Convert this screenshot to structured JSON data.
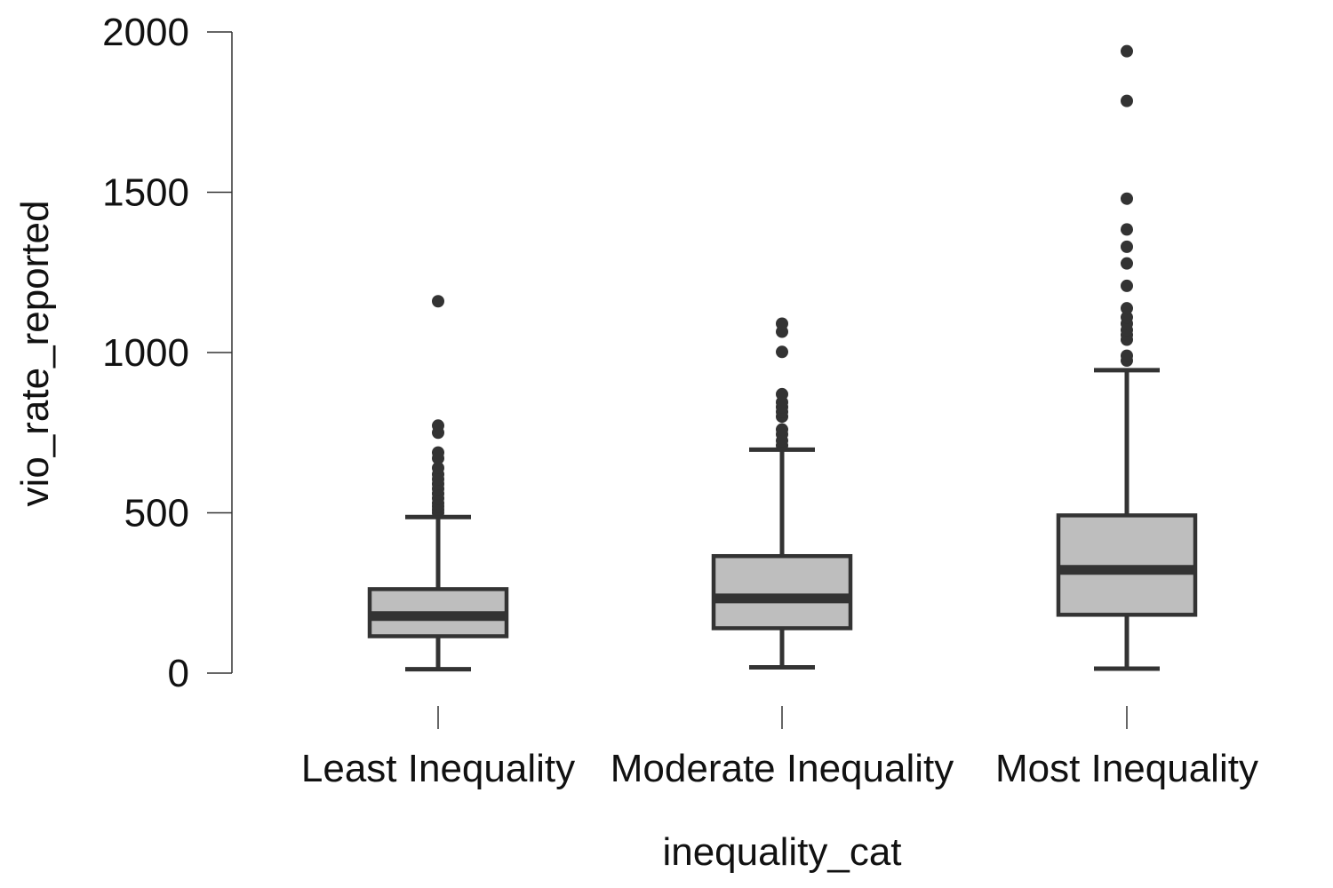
{
  "chart_data": {
    "type": "boxplot",
    "title": "",
    "xlabel": "inequality_cat",
    "ylabel": "vio_rate_reported",
    "ylim": [
      0,
      2000
    ],
    "yticks": [
      0,
      500,
      1000,
      1500,
      2000
    ],
    "grid": false,
    "categories": [
      "Least Inequality",
      "Moderate Inequality",
      "Most Inequality"
    ],
    "boxes": [
      {
        "category": "Least Inequality",
        "whisker_low": 12,
        "q1": 115,
        "median": 178,
        "q3": 262,
        "whisker_high": 487,
        "outliers": [
          500,
          510,
          520,
          530,
          545,
          560,
          575,
          590,
          605,
          620,
          640,
          670,
          688,
          750,
          772,
          1160
        ]
      },
      {
        "category": "Moderate Inequality",
        "whisker_low": 18,
        "q1": 140,
        "median": 233,
        "q3": 365,
        "whisker_high": 697,
        "outliers": [
          710,
          725,
          745,
          760,
          800,
          815,
          830,
          845,
          870,
          1002,
          1065,
          1090
        ]
      },
      {
        "category": "Most Inequality",
        "whisker_low": 14,
        "q1": 182,
        "median": 322,
        "q3": 492,
        "whisker_high": 945,
        "outliers": [
          975,
          990,
          1040,
          1055,
          1070,
          1090,
          1110,
          1138,
          1208,
          1278,
          1330,
          1384,
          1480,
          1785,
          1940
        ]
      }
    ],
    "colors": {
      "box_fill": "#bebebe",
      "stroke": "#333333",
      "axis": "#333333",
      "text": "#111111"
    }
  }
}
